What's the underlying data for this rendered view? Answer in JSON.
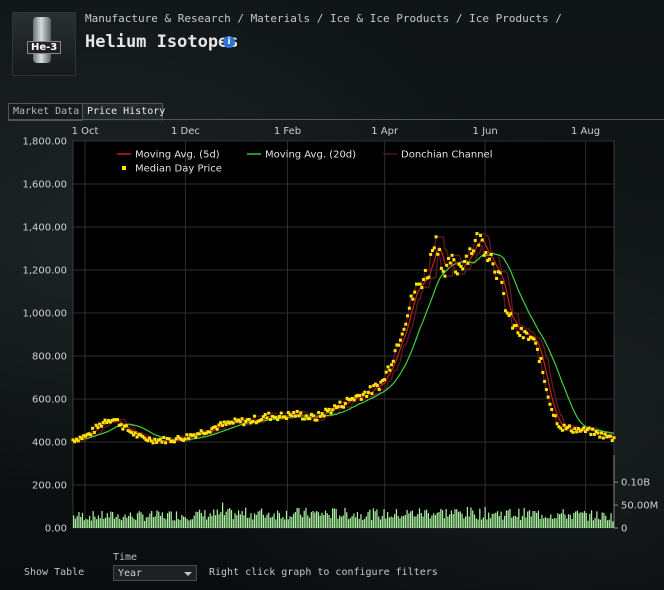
{
  "header": {
    "breadcrumb": "Manufacture & Research  /  Materials  /  Ice & Ice Products  /  Ice Products  /",
    "title": "Helium Isotopes",
    "item_icon_label": "He-3",
    "info_icon": "info-icon"
  },
  "tabs": [
    {
      "label": "Market Data",
      "active": false
    },
    {
      "label": "Price History",
      "active": true
    }
  ],
  "controls": {
    "show_table_label": "Show Table",
    "time_label": "Time",
    "time_value": "Year",
    "hint": "Right click graph to configure filters"
  },
  "colors": {
    "ma5": "#d02020",
    "ma20": "#40d040",
    "donchian": "#5a1a1a",
    "median": "#ffe600",
    "volume": "#a8f0a0"
  },
  "chart_data": {
    "type": "line",
    "x_ticks": [
      "1 Oct",
      "1 Dec",
      "1 Feb",
      "1 Apr",
      "1 Jun",
      "1 Aug"
    ],
    "y_ticks": [
      "0.00",
      "200.00",
      "400.00",
      "600.00",
      "800.00",
      "1,000.00",
      "1,200.00",
      "1,400.00",
      "1,600.00",
      "1,800.00"
    ],
    "y2_ticks": [
      "0",
      "50.00M",
      "0.10B"
    ],
    "ylim": [
      0,
      1800
    ],
    "y2lim": [
      0,
      120000000
    ],
    "legend": [
      {
        "name": "Moving Avg. (5d)",
        "key": "ma5"
      },
      {
        "name": "Moving Avg. (20d)",
        "key": "ma20"
      },
      {
        "name": "Donchian Channel",
        "key": "donchian"
      },
      {
        "name": "Median Day Price",
        "key": "median"
      }
    ],
    "legend_position": "top-left",
    "price_anchors": [
      [
        0,
        410
      ],
      [
        8,
        430
      ],
      [
        14,
        470
      ],
      [
        18,
        500
      ],
      [
        22,
        510
      ],
      [
        26,
        490
      ],
      [
        30,
        460
      ],
      [
        38,
        420
      ],
      [
        45,
        410
      ],
      [
        55,
        410
      ],
      [
        62,
        420
      ],
      [
        70,
        440
      ],
      [
        80,
        470
      ],
      [
        90,
        490
      ],
      [
        100,
        500
      ],
      [
        110,
        520
      ],
      [
        118,
        520
      ],
      [
        125,
        530
      ],
      [
        130,
        520
      ],
      [
        136,
        510
      ],
      [
        142,
        540
      ],
      [
        150,
        570
      ],
      [
        156,
        600
      ],
      [
        162,
        620
      ],
      [
        168,
        640
      ],
      [
        174,
        680
      ],
      [
        180,
        800
      ],
      [
        186,
        950
      ],
      [
        192,
        1100
      ],
      [
        196,
        1150
      ],
      [
        200,
        1200
      ],
      [
        203,
        1350
      ],
      [
        206,
        1300
      ],
      [
        209,
        1150
      ],
      [
        212,
        1250
      ],
      [
        215,
        1200
      ],
      [
        220,
        1250
      ],
      [
        224,
        1300
      ],
      [
        228,
        1350
      ],
      [
        232,
        1300
      ],
      [
        236,
        1250
      ],
      [
        240,
        1150
      ],
      [
        244,
        1000
      ],
      [
        248,
        930
      ],
      [
        252,
        900
      ],
      [
        258,
        880
      ],
      [
        262,
        800
      ],
      [
        266,
        650
      ],
      [
        270,
        530
      ],
      [
        274,
        470
      ],
      [
        280,
        460
      ],
      [
        290,
        450
      ],
      [
        298,
        430
      ],
      [
        304,
        415
      ]
    ],
    "volume_anchors": [
      [
        0,
        25000000
      ],
      [
        40,
        25000000
      ],
      [
        60,
        27000000
      ],
      [
        100,
        30000000
      ],
      [
        150,
        30000000
      ],
      [
        180,
        28000000
      ],
      [
        200,
        32000000
      ],
      [
        240,
        30000000
      ],
      [
        280,
        28000000
      ],
      [
        304,
        24000000
      ]
    ],
    "days": 305
  }
}
